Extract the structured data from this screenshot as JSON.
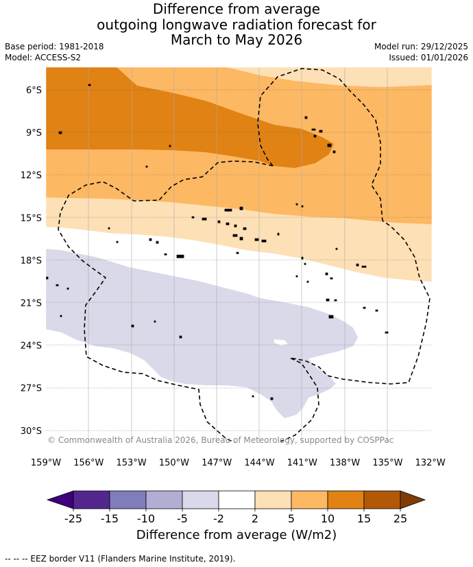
{
  "title": {
    "line1": "Difference from average",
    "line2": "outgoing longwave radiation forecast for",
    "line3": "March to May 2026"
  },
  "meta_left": {
    "base_period": "Base period: 1981-2018",
    "model": "Model: ACCESS-S2"
  },
  "meta_right": {
    "model_run": "Model run: 29/12/2025",
    "issued": "Issued: 01/01/2026"
  },
  "map": {
    "copyright": "© Commonwealth of Australia 2026, Bureau of Meteorology, supported by COSPPac",
    "lat_labels": [
      "6°S",
      "9°S",
      "12°S",
      "15°S",
      "18°S",
      "21°S",
      "24°S",
      "27°S",
      "30°S"
    ],
    "lon_labels": [
      "159°W",
      "156°W",
      "153°W",
      "150°W",
      "147°W",
      "144°W",
      "141°W",
      "138°W",
      "135°W",
      "132°W"
    ]
  },
  "colorbar": {
    "label": "Difference from average (W/m2)",
    "ticks": [
      "-25",
      "-15",
      "-10",
      "-5",
      "-2",
      "2",
      "5",
      "10",
      "15",
      "25"
    ],
    "colors": [
      "#3f007d",
      "#54278f",
      "#807dba",
      "#b1aed4",
      "#d9d9e9",
      "#ffffff",
      "#fee0b6",
      "#fdb863",
      "#e08214",
      "#b35806",
      "#7f3b08"
    ]
  },
  "legend_note": "--  --  -- EEZ border V11 (Flanders Marine Institute, 2019)."
}
